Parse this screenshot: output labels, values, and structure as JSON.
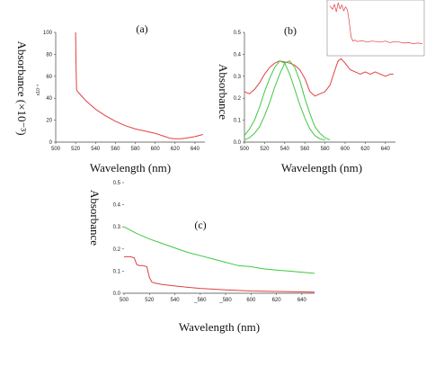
{
  "charts": [
    {
      "panel_label": "(a)",
      "type": "line",
      "xlabel": "Wavelength (nm)",
      "ylabel": "Absorbance (×10⁻³)",
      "y_multiplier_note": "x10⁻³",
      "xlim": [
        500,
        650
      ],
      "ylim": [
        0,
        100
      ],
      "xticks": [
        500,
        520,
        540,
        560,
        580,
        600,
        620,
        640
      ],
      "yticks": [
        0,
        20,
        40,
        60,
        80,
        100
      ],
      "series": [
        {
          "color": "#e04040",
          "x": [
            520,
            520.5,
            521,
            522,
            525,
            530,
            535,
            540,
            550,
            560,
            570,
            580,
            590,
            600,
            610,
            615,
            620,
            625,
            630,
            640,
            648
          ],
          "y": [
            100,
            65,
            48,
            46,
            43,
            38,
            34,
            30,
            24,
            19,
            15,
            12,
            10,
            8,
            5,
            3.5,
            3,
            3,
            3.5,
            5,
            7
          ]
        }
      ]
    },
    {
      "panel_label": "(b)",
      "type": "line",
      "xlabel": "Wavelength (nm)",
      "ylabel": "Absorbance",
      "xlim": [
        500,
        650
      ],
      "ylim": [
        0,
        0.5
      ],
      "xticks": [
        500,
        520,
        540,
        560,
        580,
        600,
        620,
        640
      ],
      "yticks": [
        0,
        0.1,
        0.2,
        0.3,
        0.4,
        0.5
      ],
      "series": [
        {
          "color": "#e04040",
          "x": [
            500,
            505,
            510,
            515,
            520,
            525,
            530,
            535,
            540,
            545,
            550,
            555,
            560,
            565,
            570,
            575,
            580,
            585,
            590,
            593,
            596,
            600,
            605,
            610,
            615,
            620,
            625,
            630,
            635,
            640,
            645,
            648
          ],
          "y": [
            0.23,
            0.22,
            0.24,
            0.27,
            0.31,
            0.34,
            0.36,
            0.37,
            0.365,
            0.36,
            0.35,
            0.33,
            0.29,
            0.23,
            0.21,
            0.22,
            0.23,
            0.26,
            0.33,
            0.37,
            0.38,
            0.36,
            0.33,
            0.32,
            0.31,
            0.32,
            0.31,
            0.32,
            0.31,
            0.3,
            0.31,
            0.31
          ]
        },
        {
          "color": "#3fc83f",
          "x": [
            500,
            505,
            510,
            515,
            520,
            525,
            530,
            535,
            540,
            545,
            550,
            555,
            560,
            565,
            570,
            575,
            580
          ],
          "y": [
            0.03,
            0.06,
            0.1,
            0.16,
            0.23,
            0.29,
            0.34,
            0.37,
            0.36,
            0.31,
            0.24,
            0.17,
            0.11,
            0.06,
            0.03,
            0.015,
            0.01
          ]
        },
        {
          "color": "#3fc83f",
          "x": [
            500,
            505,
            510,
            515,
            520,
            525,
            530,
            535,
            540,
            545,
            550,
            555,
            560,
            565,
            570,
            575,
            580,
            585
          ],
          "y": [
            0.01,
            0.02,
            0.04,
            0.07,
            0.12,
            0.18,
            0.25,
            0.31,
            0.36,
            0.37,
            0.34,
            0.28,
            0.2,
            0.13,
            0.07,
            0.04,
            0.02,
            0.01
          ]
        }
      ]
    },
    {
      "panel_label": "(c)",
      "type": "line",
      "xlabel": "Wavelength (nm)",
      "ylabel": "Absorbance",
      "xlim": [
        500,
        650
      ],
      "ylim": [
        0,
        0.5
      ],
      "xticks": [
        500,
        520,
        540,
        560,
        580,
        600,
        620,
        640
      ],
      "xtick_labels": [
        "500",
        "520",
        "540",
        "_560",
        "_580",
        "600",
        "620",
        "640"
      ],
      "yticks": [
        0,
        0.1,
        0.2,
        0.3,
        0.4,
        0.5
      ],
      "series": [
        {
          "color": "#3fc83f",
          "x": [
            500,
            510,
            520,
            530,
            540,
            550,
            560,
            570,
            580,
            590,
            600,
            610,
            620,
            630,
            640,
            650
          ],
          "y": [
            0.3,
            0.27,
            0.245,
            0.225,
            0.205,
            0.185,
            0.17,
            0.155,
            0.14,
            0.125,
            0.12,
            0.11,
            0.105,
            0.1,
            0.095,
            0.09
          ]
        },
        {
          "color": "#e04040",
          "x": [
            500,
            505,
            508,
            510,
            512,
            515,
            518,
            520,
            522,
            525,
            530,
            540,
            550,
            560,
            580,
            600,
            620,
            640,
            650
          ],
          "y": [
            0.165,
            0.165,
            0.16,
            0.13,
            0.125,
            0.125,
            0.12,
            0.07,
            0.05,
            0.045,
            0.04,
            0.033,
            0.027,
            0.022,
            0.015,
            0.01,
            0.008,
            0.006,
            0.005
          ]
        }
      ]
    },
    {
      "panel_label": "",
      "type": "line",
      "xlabel": "",
      "ylabel": "",
      "xlim": [
        0,
        100
      ],
      "ylim": [
        0,
        100
      ],
      "xticks": [],
      "yticks": [],
      "series": [
        {
          "color": "#e04040",
          "x": [
            0,
            3,
            5,
            7,
            9,
            11,
            13,
            15,
            17,
            19,
            21,
            23,
            25,
            27,
            30,
            35,
            40,
            45,
            50,
            55,
            60,
            65,
            70,
            75,
            80,
            85,
            90,
            95,
            100
          ],
          "y": [
            92,
            85,
            95,
            80,
            98,
            86,
            94,
            82,
            90,
            84,
            60,
            30,
            22,
            24,
            21,
            23,
            20,
            22,
            21,
            20,
            22,
            19,
            21,
            20,
            18,
            19,
            17,
            18,
            17
          ]
        }
      ]
    }
  ]
}
